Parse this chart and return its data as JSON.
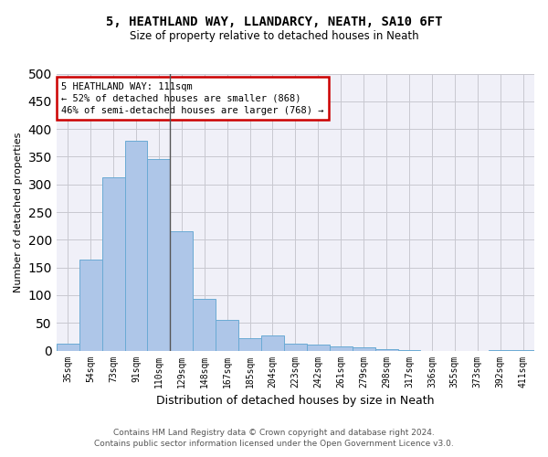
{
  "title": "5, HEATHLAND WAY, LLANDARCY, NEATH, SA10 6FT",
  "subtitle": "Size of property relative to detached houses in Neath",
  "xlabel": "Distribution of detached houses by size in Neath",
  "ylabel": "Number of detached properties",
  "categories": [
    "35sqm",
    "54sqm",
    "73sqm",
    "91sqm",
    "110sqm",
    "129sqm",
    "148sqm",
    "167sqm",
    "185sqm",
    "204sqm",
    "223sqm",
    "242sqm",
    "261sqm",
    "279sqm",
    "298sqm",
    "317sqm",
    "336sqm",
    "355sqm",
    "373sqm",
    "392sqm",
    "411sqm"
  ],
  "values": [
    13,
    165,
    313,
    378,
    345,
    215,
    93,
    55,
    23,
    28,
    13,
    10,
    8,
    6,
    3,
    1,
    0,
    0,
    0,
    1,
    1
  ],
  "bar_color": "#aec6e8",
  "bar_edge_color": "#6aaad4",
  "property_line_index": 4,
  "annotation_line1": "5 HEATHLAND WAY: 111sqm",
  "annotation_line2": "← 52% of detached houses are smaller (868)",
  "annotation_line3": "46% of semi-detached houses are larger (768) →",
  "annotation_box_color": "#ffffff",
  "annotation_box_edge_color": "#cc0000",
  "ylim": [
    0,
    500
  ],
  "yticks": [
    0,
    50,
    100,
    150,
    200,
    250,
    300,
    350,
    400,
    450,
    500
  ],
  "grid_color": "#c8c8d0",
  "background_color": "#f0f0f8",
  "footer_line1": "Contains HM Land Registry data © Crown copyright and database right 2024.",
  "footer_line2": "Contains public sector information licensed under the Open Government Licence v3.0."
}
